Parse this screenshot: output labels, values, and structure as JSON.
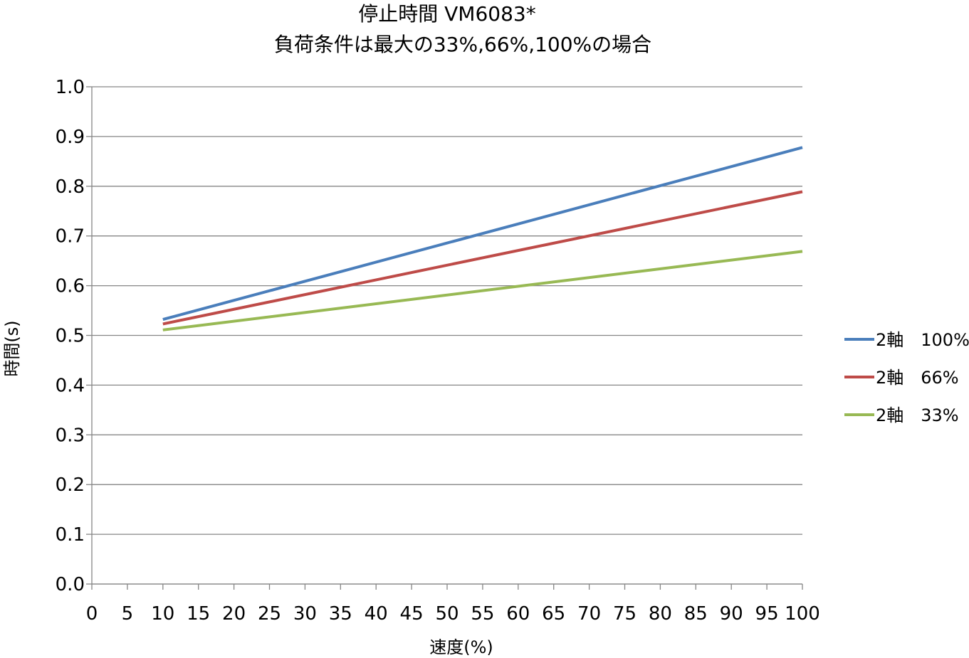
{
  "chart_data": {
    "type": "line",
    "title": "停止時間 VM6083*",
    "subtitle": "負荷条件は最大の33%,66%,100%の場合",
    "xlabel": "速度(%)",
    "ylabel": "時間(s)",
    "xlim": [
      0,
      100
    ],
    "ylim": [
      0,
      1.0
    ],
    "x_ticks": [
      "0",
      "5",
      "10",
      "15",
      "20",
      "25",
      "30",
      "35",
      "40",
      "45",
      "50",
      "55",
      "60",
      "65",
      "70",
      "75",
      "80",
      "85",
      "90",
      "95",
      "100"
    ],
    "y_ticks": [
      "0.0",
      "0.1",
      "0.2",
      "0.3",
      "0.4",
      "0.5",
      "0.6",
      "0.7",
      "0.8",
      "0.9",
      "1.0"
    ],
    "grid": "horizontal",
    "legend_position": "right",
    "series": [
      {
        "name": "2軸　100%",
        "color": "#4a7ebb",
        "x": [
          10,
          100
        ],
        "y": [
          0.532,
          0.878
        ]
      },
      {
        "name": "2軸　66%",
        "color": "#be4b48",
        "x": [
          10,
          100
        ],
        "y": [
          0.523,
          0.789
        ]
      },
      {
        "name": "2軸　33%",
        "color": "#98b954",
        "x": [
          10,
          100
        ],
        "y": [
          0.511,
          0.669
        ]
      }
    ]
  }
}
